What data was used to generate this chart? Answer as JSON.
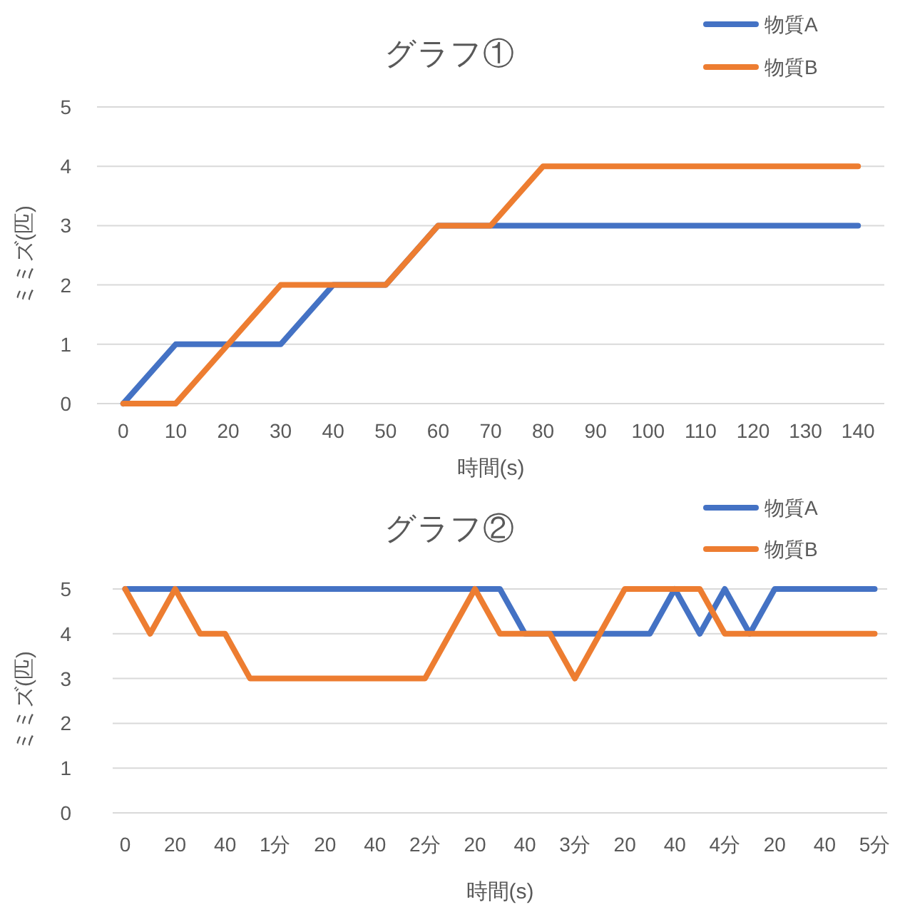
{
  "chart_data": [
    {
      "type": "line",
      "title": "グラフ①",
      "xlabel": "時間(s)",
      "ylabel": "ミミズ(匹)",
      "categories": [
        "0",
        "10",
        "20",
        "30",
        "40",
        "50",
        "60",
        "70",
        "80",
        "90",
        "100",
        "110",
        "120",
        "130",
        "140"
      ],
      "series": [
        {
          "name": "物質A",
          "color": "#4472c4",
          "values": [
            0,
            1,
            1,
            1,
            2,
            2,
            3,
            3,
            3,
            3,
            3,
            3,
            3,
            3,
            3
          ]
        },
        {
          "name": "物質B",
          "color": "#ed7d31",
          "values": [
            0,
            0,
            1,
            2,
            2,
            2,
            3,
            3,
            4,
            4,
            4,
            4,
            4,
            4,
            4
          ]
        }
      ],
      "ylim": [
        0,
        5
      ],
      "yticks": [
        0,
        1,
        2,
        3,
        4,
        5
      ],
      "grid": "y",
      "legend": "top right",
      "marker": "none",
      "line_style": "solid"
    },
    {
      "type": "line",
      "title": "グラフ②",
      "xlabel": "時間(s)",
      "ylabel": "ミミズ(匹)",
      "categories": [
        "0",
        null,
        "20",
        null,
        "40",
        null,
        "1分",
        null,
        "20",
        null,
        "40",
        null,
        "2分",
        null,
        "20",
        null,
        "40",
        null,
        "3分",
        null,
        "20",
        null,
        "40",
        null,
        "4分",
        null,
        "20",
        null,
        "40",
        null,
        "5分"
      ],
      "series": [
        {
          "name": "物質A",
          "color": "#4472c4",
          "values": [
            5,
            5,
            5,
            5,
            5,
            5,
            5,
            5,
            5,
            5,
            5,
            5,
            5,
            5,
            5,
            5,
            4,
            4,
            4,
            4,
            4,
            4,
            5,
            4,
            5,
            4,
            5,
            5,
            5,
            5,
            5
          ]
        },
        {
          "name": "物質B",
          "color": "#ed7d31",
          "values": [
            5,
            4,
            5,
            4,
            4,
            3,
            3,
            3,
            3,
            3,
            3,
            3,
            3,
            4,
            5,
            4,
            4,
            4,
            3,
            4,
            5,
            5,
            5,
            5,
            4,
            4,
            4,
            4,
            4,
            4,
            4
          ]
        }
      ],
      "ylim": [
        0,
        5
      ],
      "yticks": [
        0,
        1,
        2,
        3,
        4,
        5
      ],
      "grid": "y",
      "legend": "top right",
      "marker": "none",
      "line_style": "solid"
    }
  ]
}
